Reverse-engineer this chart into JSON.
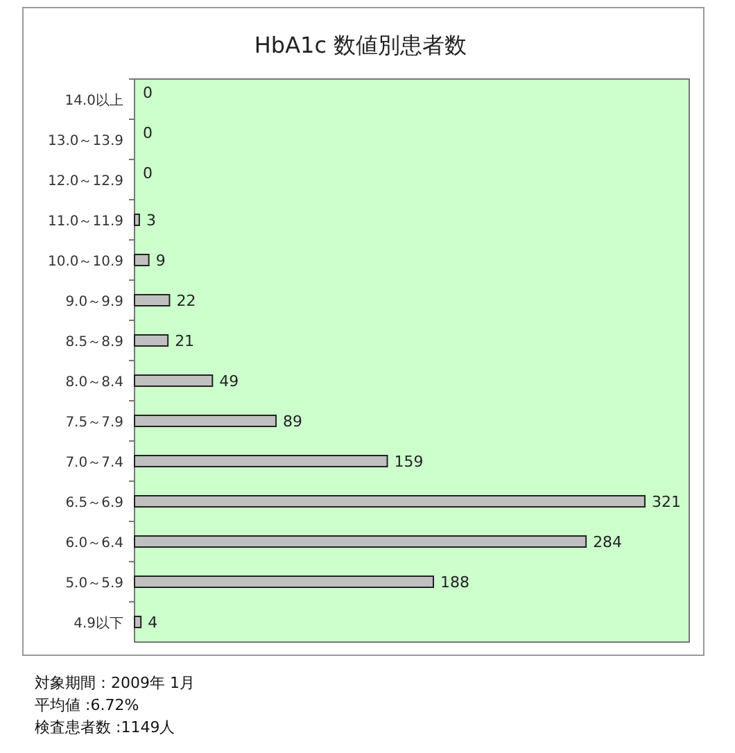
{
  "chart_data": {
    "type": "bar",
    "orientation": "horizontal",
    "title": "HbA1c 数値別患者数",
    "categories": [
      "14.0以上",
      "13.0～13.9",
      "12.0～12.9",
      "11.0～11.9",
      "10.0～10.9",
      "9.0～9.9",
      "8.5～8.9",
      "8.0～8.4",
      "7.5～7.9",
      "7.0～7.4",
      "6.5～6.9",
      "6.0～6.4",
      "5.0～5.9",
      "4.9以下"
    ],
    "values": [
      0,
      0,
      0,
      3,
      9,
      22,
      21,
      49,
      89,
      159,
      321,
      284,
      188,
      4
    ],
    "color": "#c0c0c0",
    "data_labels": true,
    "annotations": [
      "対象期間：2009年 1月",
      "平均値 :6.72%",
      "検査患者数 :1149人"
    ]
  }
}
